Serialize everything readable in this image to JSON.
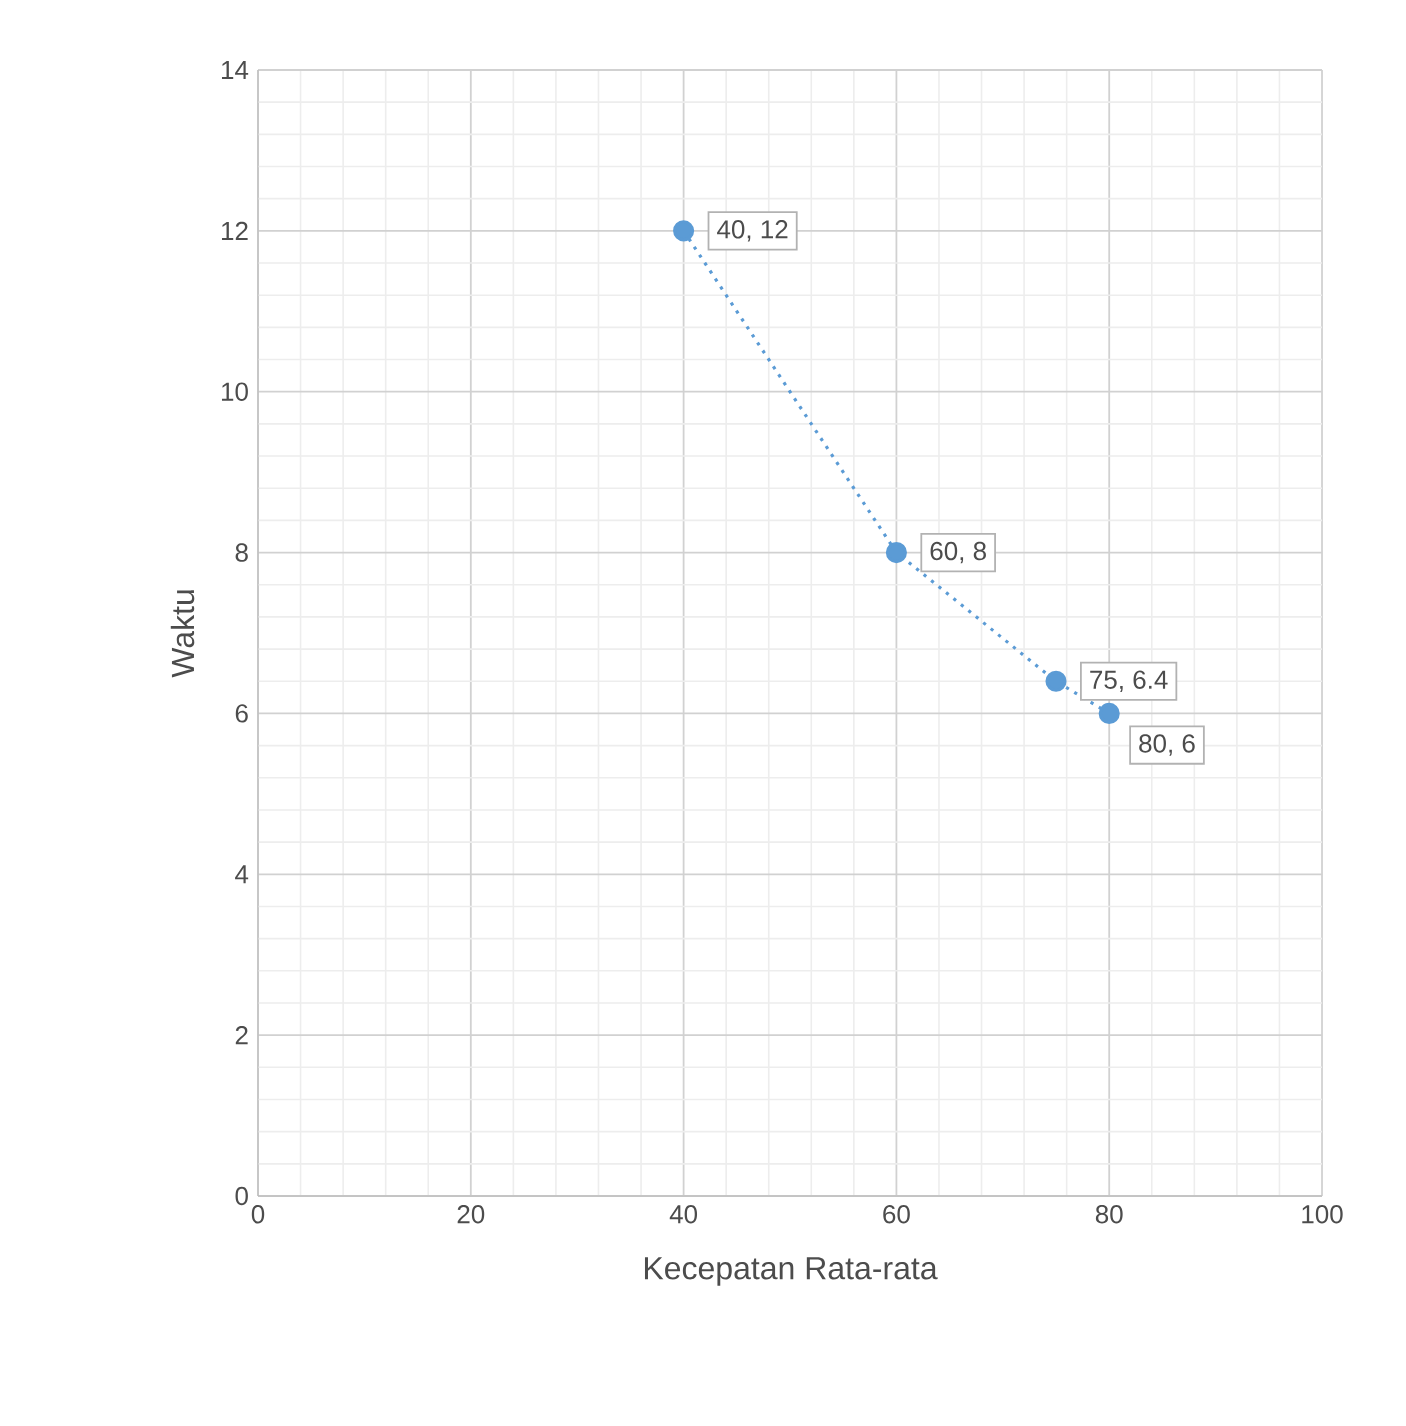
{
  "chart_data": {
    "type": "scatter",
    "xlabel": "Kecepatan Rata-rata",
    "ylabel": "Waktu",
    "x": [
      40,
      60,
      75,
      80
    ],
    "series": [
      {
        "color": "#5b9bd5",
        "values": [
          12,
          8,
          6.4,
          6
        ],
        "value_labels": [
          "40, 12",
          "60, 8",
          "75, 6.4",
          "80, 6"
        ]
      }
    ],
    "xlim": [
      0,
      100
    ],
    "ylim": [
      0,
      14
    ],
    "xticks": [
      0,
      20,
      40,
      60,
      80,
      100
    ],
    "yticks": [
      0,
      2,
      4,
      6,
      8,
      10,
      12,
      14
    ],
    "grid": true,
    "marker": "circle",
    "line_style": "dotted"
  }
}
